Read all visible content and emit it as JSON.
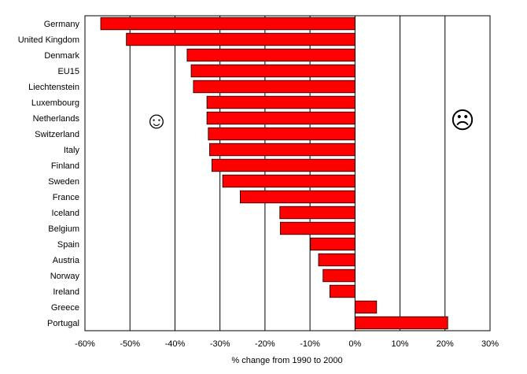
{
  "chart_data": {
    "type": "bar",
    "orientation": "horizontal",
    "categories": [
      "Germany",
      "United Kingdom",
      "Denmark",
      "EU15",
      "Liechtenstein",
      "Luxembourg",
      "Netherlands",
      "Switzerland",
      "Italy",
      "Finland",
      "Sweden",
      "France",
      "Iceland",
      "Belgium",
      "Spain",
      "Austria",
      "Norway",
      "Ireland",
      "Greece",
      "Portugal"
    ],
    "values": [
      -56.5,
      -50.8,
      -37.3,
      -36.4,
      -35.9,
      -32.9,
      -32.9,
      -32.6,
      -32.3,
      -31.8,
      -29.4,
      -25.5,
      -16.7,
      -16.6,
      -9.9,
      -8.1,
      -7.1,
      -5.6,
      4.8,
      20.6
    ],
    "xlabel": "% change from 1990 to 2000",
    "xlim": [
      -60,
      30
    ],
    "xticks": [
      "-60%",
      "-50%",
      "-40%",
      "-30%",
      "-20%",
      "-10%",
      "0%",
      "10%",
      "20%",
      "30%"
    ],
    "grid": "vertical",
    "bar_color": "#ff0000",
    "legend": "none",
    "annotations": {
      "left_face": "☺",
      "right_face": "☹"
    }
  }
}
